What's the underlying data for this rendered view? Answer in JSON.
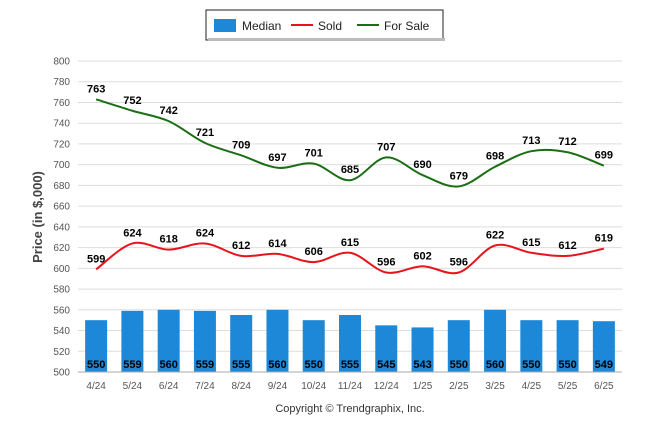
{
  "chart_data": {
    "type": "bar",
    "categories": [
      "4/24",
      "5/24",
      "6/24",
      "7/24",
      "8/24",
      "9/24",
      "10/24",
      "11/24",
      "12/24",
      "1/25",
      "2/25",
      "3/25",
      "4/25",
      "5/25",
      "6/25"
    ],
    "series": [
      {
        "name": "Median",
        "type": "bar",
        "color": "#1e88d8",
        "values": [
          550,
          559,
          560,
          559,
          555,
          560,
          550,
          555,
          545,
          543,
          550,
          560,
          550,
          550,
          549
        ]
      },
      {
        "name": "Sold",
        "type": "line",
        "color": "#e8141c",
        "values": [
          599,
          624,
          618,
          624,
          612,
          614,
          606,
          615,
          596,
          602,
          596,
          622,
          615,
          612,
          619
        ]
      },
      {
        "name": "For Sale",
        "type": "line",
        "color": "#1a6e14",
        "values": [
          763,
          752,
          742,
          721,
          709,
          697,
          701,
          685,
          707,
          690,
          679,
          698,
          713,
          712,
          699
        ]
      }
    ],
    "ylabel": "Price (in $,000)",
    "ylim": [
      500,
      800
    ],
    "yticks": [
      500,
      520,
      540,
      560,
      580,
      600,
      620,
      640,
      660,
      680,
      700,
      720,
      740,
      760,
      780,
      800
    ],
    "grid": true,
    "legend": "top-center",
    "footer": "Copyright © Trendgraphix, Inc."
  }
}
